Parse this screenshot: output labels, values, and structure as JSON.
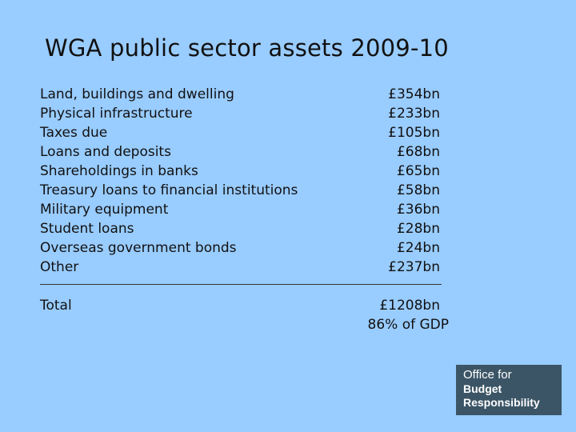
{
  "title": "WGA public sector assets 2009-10",
  "assets": [
    {
      "label": "Land, buildings and dwelling",
      "value": "£354bn"
    },
    {
      "label": "Physical infrastructure",
      "value": "£233bn"
    },
    {
      "label": "Taxes due",
      "value": "£105bn"
    },
    {
      "label": "Loans and deposits",
      "value": "£68bn"
    },
    {
      "label": "Shareholdings in banks",
      "value": "£65bn"
    },
    {
      "label": "Treasury loans to financial institutions",
      "value": "£58bn"
    },
    {
      "label": "Military equipment",
      "value": "£36bn"
    },
    {
      "label": "Student loans",
      "value": "£28bn"
    },
    {
      "label": "Overseas government bonds",
      "value": "£24bn"
    },
    {
      "label": "Other",
      "value": "£237bn"
    }
  ],
  "total": {
    "label": "Total",
    "value": "£1208bn",
    "gdp_share": "86% of GDP"
  },
  "logo": {
    "line1": "Office for",
    "line2": "Budget",
    "line3": "Responsibility"
  },
  "colors": {
    "background": "#99ccff",
    "logo_background": "#3b5566",
    "text": "#111111"
  }
}
